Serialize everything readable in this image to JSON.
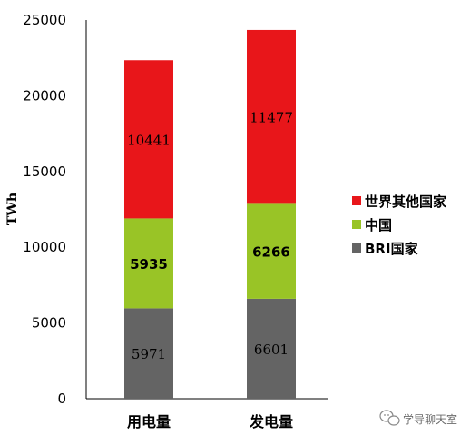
{
  "chart_data": {
    "type": "bar",
    "stacked": true,
    "categories": [
      "用电量",
      "发电量"
    ],
    "series": [
      {
        "name": "BRI国家",
        "values": [
          5971,
          6601
        ],
        "color": "#646464"
      },
      {
        "name": "中国",
        "values": [
          5935,
          6266
        ],
        "color": "#99c426"
      },
      {
        "name": "世界其他国家",
        "values": [
          10441,
          11477
        ],
        "color": "#e8161a"
      }
    ],
    "ylabel": "TWh",
    "ylim": [
      0,
      25000
    ],
    "yticks": [
      0,
      5000,
      10000,
      15000,
      20000,
      25000
    ],
    "grid": false,
    "legend_position": "right"
  },
  "watermark": {
    "text": "学导聊天室",
    "icon": "wechat-icon"
  }
}
